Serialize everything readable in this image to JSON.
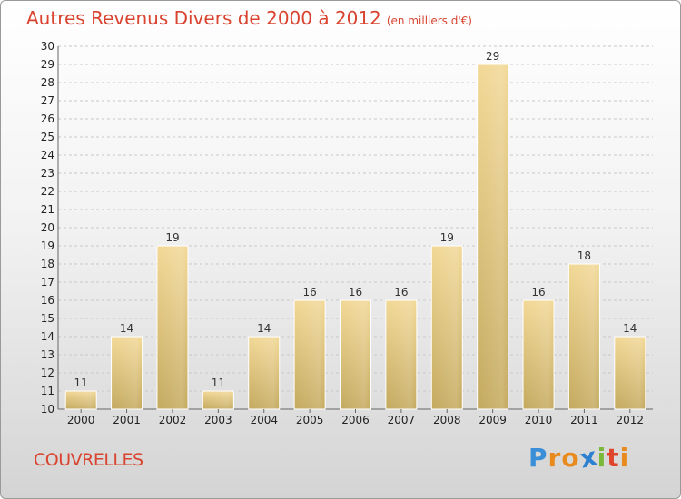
{
  "title": "Autres Revenus Divers de 2000 à 2012",
  "unit_note": "(en milliers d'€)",
  "commune": "COUVRELLES",
  "logo": {
    "letters": [
      "P",
      "r",
      "o",
      "x",
      "i",
      "t",
      "i"
    ],
    "colors": [
      "#3a8fd8",
      "#e98a1e",
      "#e98a1e",
      "#2d7fd0",
      "#7ab83a",
      "#e0452c",
      "#e98a1e"
    ]
  },
  "chart_data": {
    "type": "bar",
    "categories": [
      "2000",
      "2001",
      "2002",
      "2003",
      "2004",
      "2005",
      "2006",
      "2007",
      "2008",
      "2009",
      "2010",
      "2011",
      "2012"
    ],
    "values": [
      11,
      14,
      19,
      11,
      14,
      16,
      16,
      16,
      19,
      29,
      16,
      18,
      14
    ],
    "ylim": [
      10,
      30
    ],
    "yticks": [
      10,
      11,
      12,
      13,
      14,
      15,
      16,
      17,
      18,
      19,
      20,
      21,
      22,
      23,
      24,
      25,
      26,
      27,
      28,
      29,
      30
    ],
    "grid": true,
    "bar_color": "#e6c97a"
  }
}
